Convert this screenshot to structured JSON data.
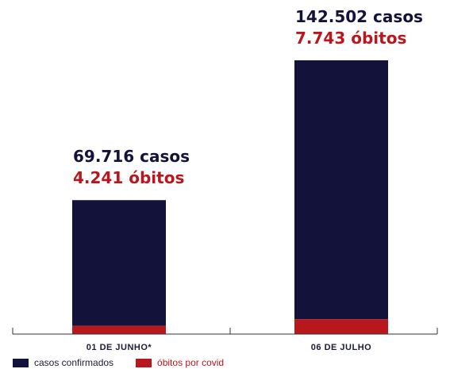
{
  "chart_data": {
    "type": "bar",
    "stacked": true,
    "categories": [
      "01 DE JUNHO*",
      "06 DE JULHO"
    ],
    "series": [
      {
        "name": "casos confirmados",
        "values": [
          69716,
          142502
        ],
        "color": "#12123a"
      },
      {
        "name": "óbitos por covid",
        "values": [
          4241,
          7743
        ],
        "color": "#b8171e"
      }
    ],
    "annotations": [
      {
        "cases": "69.716 casos",
        "deaths": "4.241 óbitos"
      },
      {
        "cases": "142.502 casos",
        "deaths": "7.743 óbitos"
      }
    ],
    "title": "",
    "xlabel": "",
    "ylabel": "",
    "grid": false,
    "legend_position": "bottom-left"
  },
  "colors": {
    "cases": "#12123a",
    "deaths": "#b8171e",
    "axis": "#333333"
  }
}
